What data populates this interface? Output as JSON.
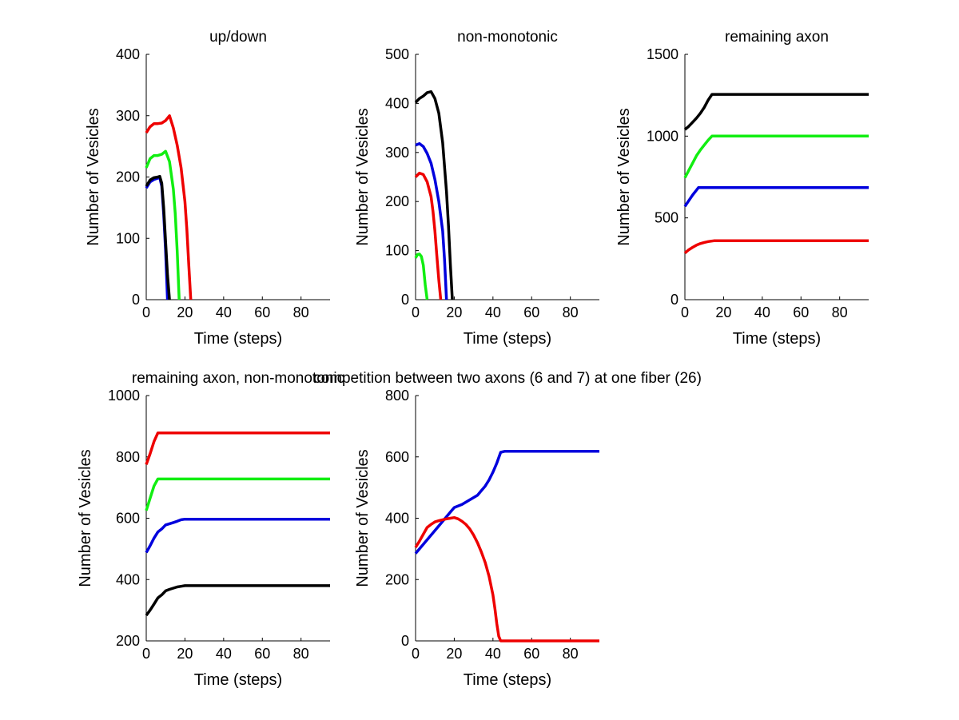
{
  "colors": {
    "red": "#ee0000",
    "green": "#11ee11",
    "blue": "#0000dd",
    "black": "#000000"
  },
  "chart_data": [
    {
      "type": "line",
      "title": "up/down",
      "xlabel": "Time (steps)",
      "ylabel": "Number of Vesicles",
      "xlim": [
        0,
        95
      ],
      "ylim": [
        0,
        400
      ],
      "xticks": [
        0,
        20,
        40,
        60,
        80
      ],
      "yticks": [
        0,
        100,
        200,
        300,
        400
      ],
      "grid": false,
      "series": [
        {
          "color": "red",
          "x": [
            0,
            2,
            4,
            6,
            8,
            10,
            12,
            14,
            16,
            18,
            20,
            21,
            22,
            23
          ],
          "y": [
            272,
            282,
            287,
            287,
            288,
            292,
            300,
            280,
            252,
            215,
            160,
            115,
            55,
            0
          ]
        },
        {
          "color": "green",
          "x": [
            0,
            2,
            4,
            6,
            8,
            10,
            12,
            14,
            15,
            16,
            17
          ],
          "y": [
            215,
            230,
            235,
            235,
            237,
            242,
            225,
            180,
            140,
            80,
            0
          ]
        },
        {
          "color": "blue",
          "x": [
            0,
            2,
            4,
            6,
            7,
            8,
            9,
            10,
            11
          ],
          "y": [
            182,
            192,
            196,
            198,
            199,
            185,
            140,
            80,
            0
          ]
        },
        {
          "color": "black",
          "x": [
            0,
            2,
            4,
            6,
            7,
            8,
            9,
            10,
            11,
            12
          ],
          "y": [
            185,
            195,
            199,
            200,
            201,
            190,
            150,
            95,
            40,
            0
          ]
        }
      ]
    },
    {
      "type": "line",
      "title": "non-monotonic",
      "xlabel": "Time (steps)",
      "ylabel": "Number of Vesicles",
      "xlim": [
        0,
        95
      ],
      "ylim": [
        0,
        500
      ],
      "xticks": [
        0,
        20,
        40,
        60,
        80
      ],
      "yticks": [
        0,
        100,
        200,
        300,
        400,
        500
      ],
      "grid": false,
      "series": [
        {
          "color": "black",
          "x": [
            0,
            2,
            4,
            6,
            8,
            10,
            12,
            14,
            16,
            17,
            18,
            19
          ],
          "y": [
            402,
            410,
            415,
            422,
            424,
            410,
            380,
            320,
            220,
            150,
            70,
            0
          ]
        },
        {
          "color": "blue",
          "x": [
            0,
            2,
            4,
            6,
            8,
            10,
            12,
            14,
            15,
            16
          ],
          "y": [
            315,
            318,
            312,
            298,
            278,
            245,
            200,
            140,
            80,
            0
          ]
        },
        {
          "color": "red",
          "x": [
            0,
            2,
            4,
            6,
            8,
            9,
            10,
            11,
            12,
            13
          ],
          "y": [
            250,
            258,
            255,
            240,
            210,
            180,
            140,
            90,
            40,
            0
          ]
        },
        {
          "color": "green",
          "x": [
            0,
            1,
            2,
            3,
            4,
            5,
            6
          ],
          "y": [
            85,
            92,
            93,
            88,
            70,
            30,
            0
          ]
        }
      ]
    },
    {
      "type": "line",
      "title": "remaining axon",
      "xlabel": "Time (steps)",
      "ylabel": "Number of Vesicles",
      "xlim": [
        0,
        95
      ],
      "ylim": [
        0,
        1500
      ],
      "xticks": [
        0,
        20,
        40,
        60,
        80
      ],
      "yticks": [
        0,
        500,
        1000,
        1500
      ],
      "grid": false,
      "series": [
        {
          "color": "black",
          "x": [
            0,
            2,
            4,
            6,
            8,
            10,
            12,
            14,
            95
          ],
          "y": [
            1040,
            1060,
            1085,
            1110,
            1140,
            1175,
            1220,
            1255,
            1255
          ]
        },
        {
          "color": "green",
          "x": [
            0,
            2,
            4,
            6,
            8,
            10,
            12,
            14,
            95
          ],
          "y": [
            745,
            790,
            835,
            880,
            915,
            945,
            975,
            1000,
            1000
          ]
        },
        {
          "color": "blue",
          "x": [
            0,
            2,
            4,
            6,
            7,
            95
          ],
          "y": [
            570,
            605,
            640,
            670,
            685,
            685
          ]
        },
        {
          "color": "red",
          "x": [
            0,
            2,
            4,
            6,
            8,
            10,
            12,
            15,
            95
          ],
          "y": [
            285,
            305,
            320,
            333,
            343,
            350,
            355,
            360,
            360
          ]
        }
      ]
    },
    {
      "type": "line",
      "title": "remaining axon, non-monotonic",
      "xlabel": "Time (steps)",
      "ylabel": "Number of Vesicles",
      "xlim": [
        0,
        95
      ],
      "ylim": [
        200,
        1000
      ],
      "xticks": [
        0,
        20,
        40,
        60,
        80
      ],
      "yticks": [
        200,
        400,
        600,
        800,
        1000
      ],
      "grid": false,
      "series": [
        {
          "color": "red",
          "x": [
            0,
            2,
            4,
            6,
            95
          ],
          "y": [
            775,
            810,
            850,
            878,
            878
          ]
        },
        {
          "color": "green",
          "x": [
            0,
            2,
            4,
            6,
            95
          ],
          "y": [
            625,
            665,
            705,
            728,
            728
          ]
        },
        {
          "color": "blue",
          "x": [
            0,
            2,
            4,
            6,
            8,
            10,
            12,
            14,
            16,
            18,
            20,
            95
          ],
          "y": [
            488,
            510,
            535,
            555,
            565,
            578,
            582,
            586,
            590,
            595,
            597,
            597
          ]
        },
        {
          "color": "black",
          "x": [
            0,
            2,
            4,
            6,
            8,
            10,
            12,
            14,
            16,
            18,
            20,
            95
          ],
          "y": [
            283,
            300,
            320,
            340,
            350,
            363,
            368,
            372,
            376,
            378,
            380,
            380
          ]
        }
      ]
    },
    {
      "type": "line",
      "title": "competition between two axons (6 and 7) at one fiber (26)",
      "xlabel": "Time (steps)",
      "ylabel": "Number of Vesicles",
      "xlim": [
        0,
        95
      ],
      "ylim": [
        0,
        800
      ],
      "xticks": [
        0,
        20,
        40,
        60,
        80
      ],
      "yticks": [
        0,
        200,
        400,
        600,
        800
      ],
      "grid": false,
      "series": [
        {
          "color": "blue",
          "x": [
            0,
            4,
            8,
            12,
            16,
            18,
            20,
            24,
            28,
            32,
            34,
            36,
            38,
            40,
            42,
            44,
            46,
            95
          ],
          "y": [
            285,
            315,
            345,
            375,
            405,
            420,
            435,
            445,
            460,
            475,
            490,
            505,
            525,
            550,
            580,
            615,
            618,
            618
          ]
        },
        {
          "color": "red",
          "x": [
            0,
            2,
            4,
            6,
            8,
            10,
            12,
            14,
            16,
            18,
            20,
            22,
            24,
            26,
            28,
            30,
            32,
            34,
            36,
            38,
            40,
            41,
            42,
            43,
            44,
            95
          ],
          "y": [
            305,
            325,
            348,
            370,
            380,
            388,
            392,
            395,
            398,
            400,
            402,
            398,
            390,
            380,
            365,
            345,
            320,
            290,
            255,
            210,
            150,
            105,
            55,
            15,
            0,
            0
          ]
        }
      ]
    }
  ]
}
